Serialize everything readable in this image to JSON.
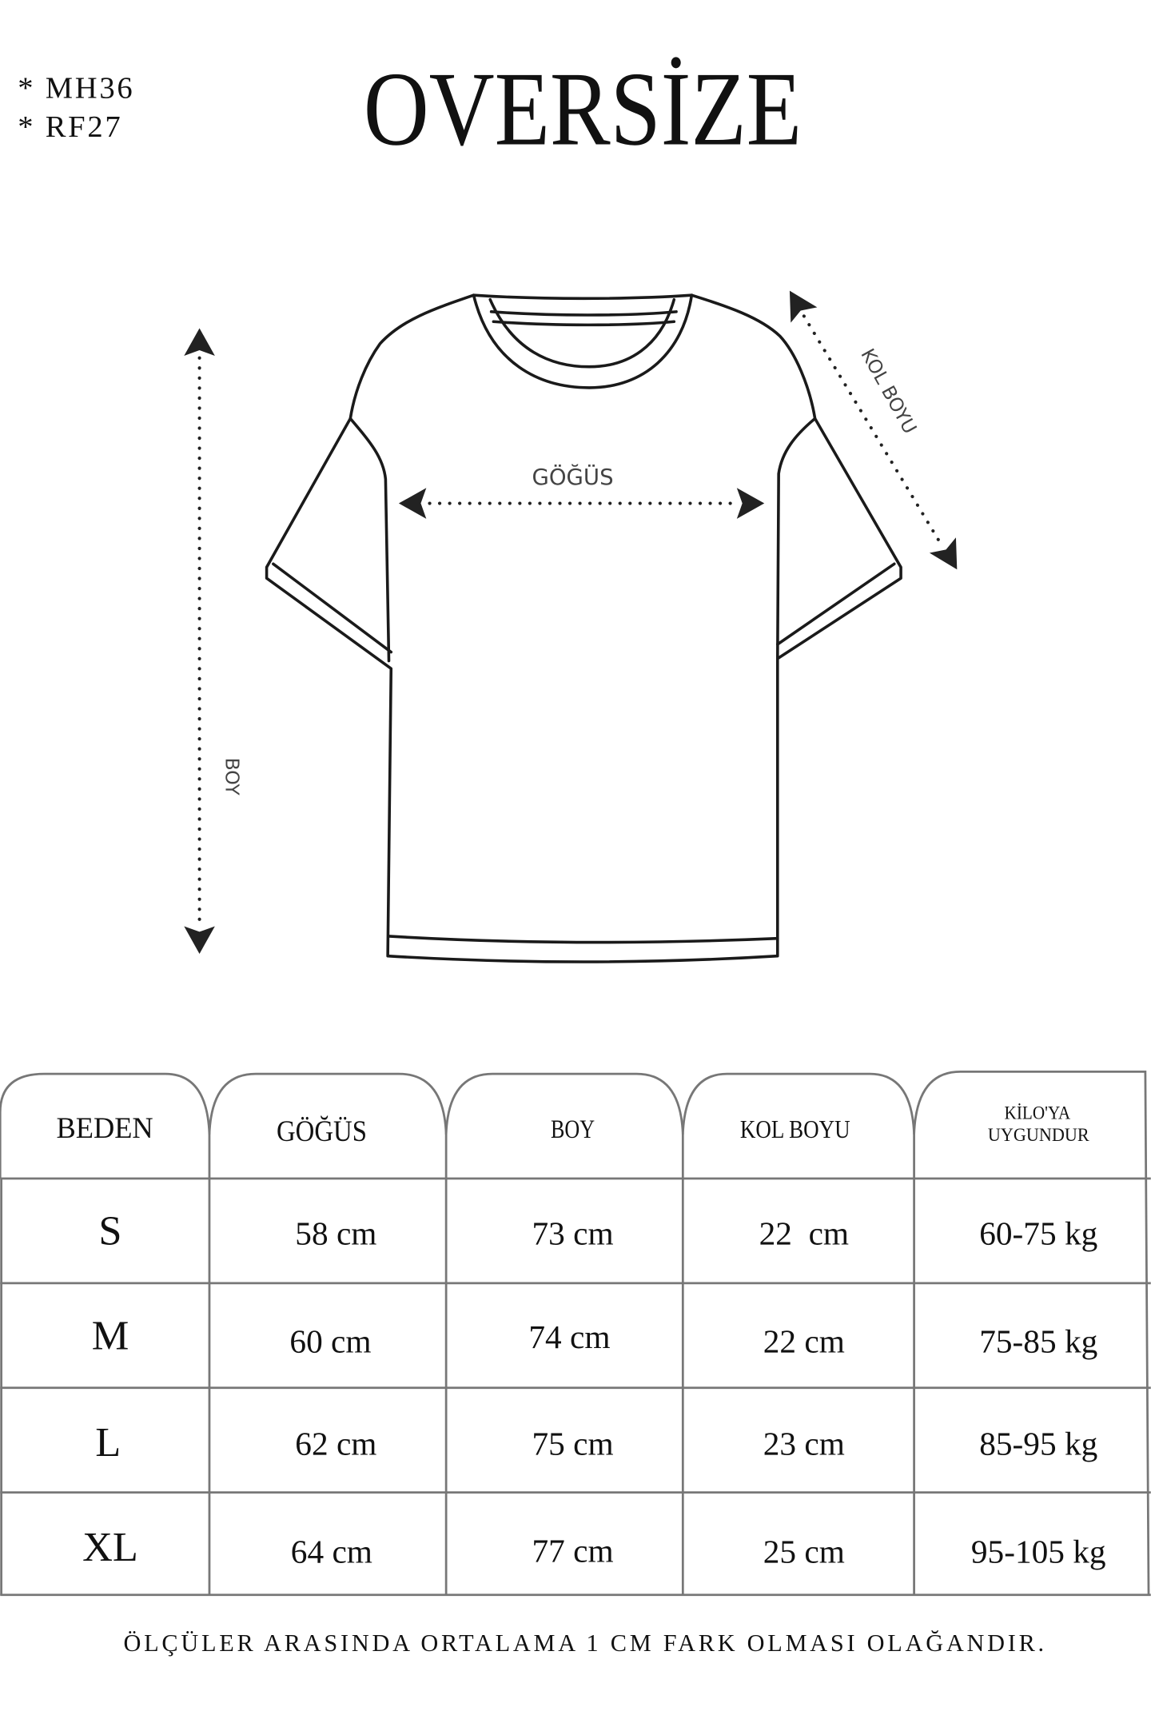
{
  "codes": [
    "* MH36",
    "* RF27"
  ],
  "title": "OVERSİZE",
  "diagram": {
    "chest_label": "GÖĞÜS",
    "length_label": "BOY",
    "sleeve_label": "KOL BOYU"
  },
  "table": {
    "headers": [
      "BEDEN",
      "GÖĞÜS",
      "BOY",
      "KOL BOYU",
      "KİLO'YA",
      "UYGUNDUR"
    ],
    "rows": [
      [
        "S",
        "58 cm",
        "73 cm",
        "22  cm",
        "60-75 kg"
      ],
      [
        "M",
        "60 cm",
        "74 cm",
        "22 cm",
        "75-85 kg"
      ],
      [
        "L",
        "62 cm",
        "75 cm",
        "23 cm",
        "85-95 kg"
      ],
      [
        "XL",
        "64 cm",
        "77 cm",
        "25 cm",
        "95-105 kg"
      ]
    ]
  },
  "footer_note": "ÖLÇÜLER ARASINDA ORTALAMA 1 CM FARK OLMASI OLAĞANDIR."
}
